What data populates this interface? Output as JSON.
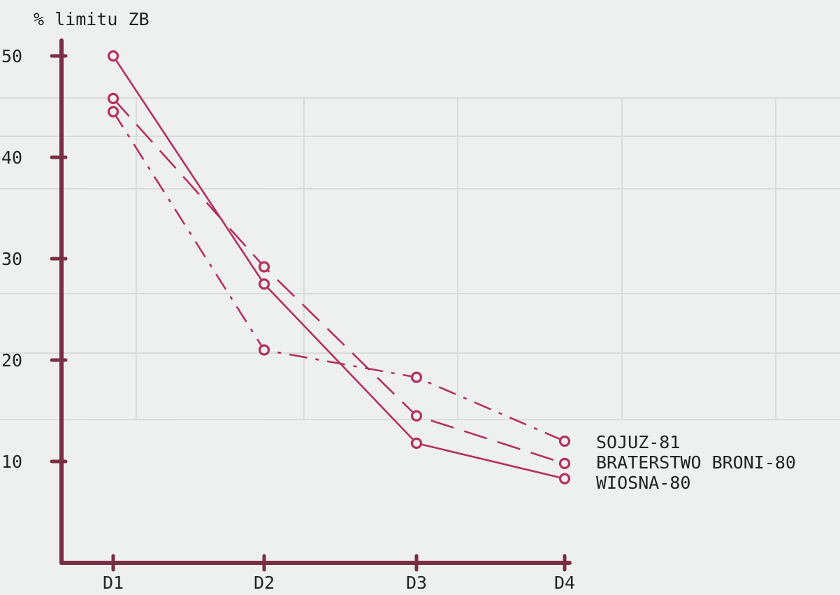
{
  "chart_data": {
    "type": "line",
    "ylabel": "% limitu ZB",
    "xlabel": "",
    "categories": [
      "D1",
      "D2",
      "D3",
      "D4"
    ],
    "ylim": [
      0,
      50
    ],
    "yticks": [
      10,
      20,
      30,
      40,
      50
    ],
    "grid": false,
    "legend": "right",
    "series": [
      {
        "name": "SOJUZ-81",
        "values": [
          44.5,
          21,
          18.3,
          12
        ],
        "line_style": "dash-dot",
        "color": "#b5305f"
      },
      {
        "name": "BRATERSTWO BRONI-80",
        "values": [
          45.8,
          29.2,
          14.5,
          9.8
        ],
        "line_style": "dashed",
        "color": "#b5305f"
      },
      {
        "name": "WIOSNA-80",
        "values": [
          50,
          27.5,
          11.8,
          8.3
        ],
        "line_style": "solid",
        "color": "#b5305f"
      }
    ]
  }
}
